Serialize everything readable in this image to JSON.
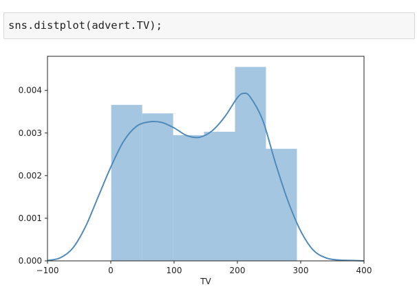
{
  "code_cell": {
    "source": "sns.distplot(advert.TV);"
  },
  "colors": {
    "bar_fill": "#a4c6e1",
    "kde_line": "#4f8ab9",
    "axis": "#222222"
  },
  "chart_data": {
    "type": "bar",
    "title": "",
    "xlabel": "TV",
    "ylabel": "",
    "xlim": [
      -100,
      400
    ],
    "ylim": [
      0,
      0.0048
    ],
    "x_ticks": [
      -100,
      0,
      100,
      200,
      300,
      400
    ],
    "x_tick_labels": [
      "−100",
      "0",
      "100",
      "200",
      "300",
      "400"
    ],
    "y_ticks": [
      0.0,
      0.001,
      0.002,
      0.003,
      0.004
    ],
    "y_tick_labels": [
      "0.000",
      "0.001",
      "0.002",
      "0.003",
      "0.004"
    ],
    "grid": false,
    "histogram": {
      "bin_edges": [
        0.7,
        49.6,
        98.5,
        147.3,
        196.2,
        245.1,
        294.0
      ],
      "densities": [
        0.00366,
        0.00346,
        0.00295,
        0.00303,
        0.00455,
        0.00263
      ]
    },
    "kde": {
      "x": [
        -100,
        -80,
        -60,
        -40,
        -20,
        0,
        20,
        40,
        60,
        80,
        100,
        120,
        140,
        160,
        180,
        200,
        210,
        220,
        240,
        260,
        280,
        300,
        320,
        340,
        360,
        380,
        400
      ],
      "y": [
        1e-05,
        7e-05,
        0.0003,
        0.0008,
        0.0015,
        0.0022,
        0.0028,
        0.00315,
        0.00326,
        0.00325,
        0.00312,
        0.00294,
        0.0029,
        0.00305,
        0.00338,
        0.00383,
        0.00393,
        0.00385,
        0.0033,
        0.0023,
        0.0014,
        0.0007,
        0.00025,
        7e-05,
        2e-05,
        1e-05,
        0.0
      ]
    }
  }
}
